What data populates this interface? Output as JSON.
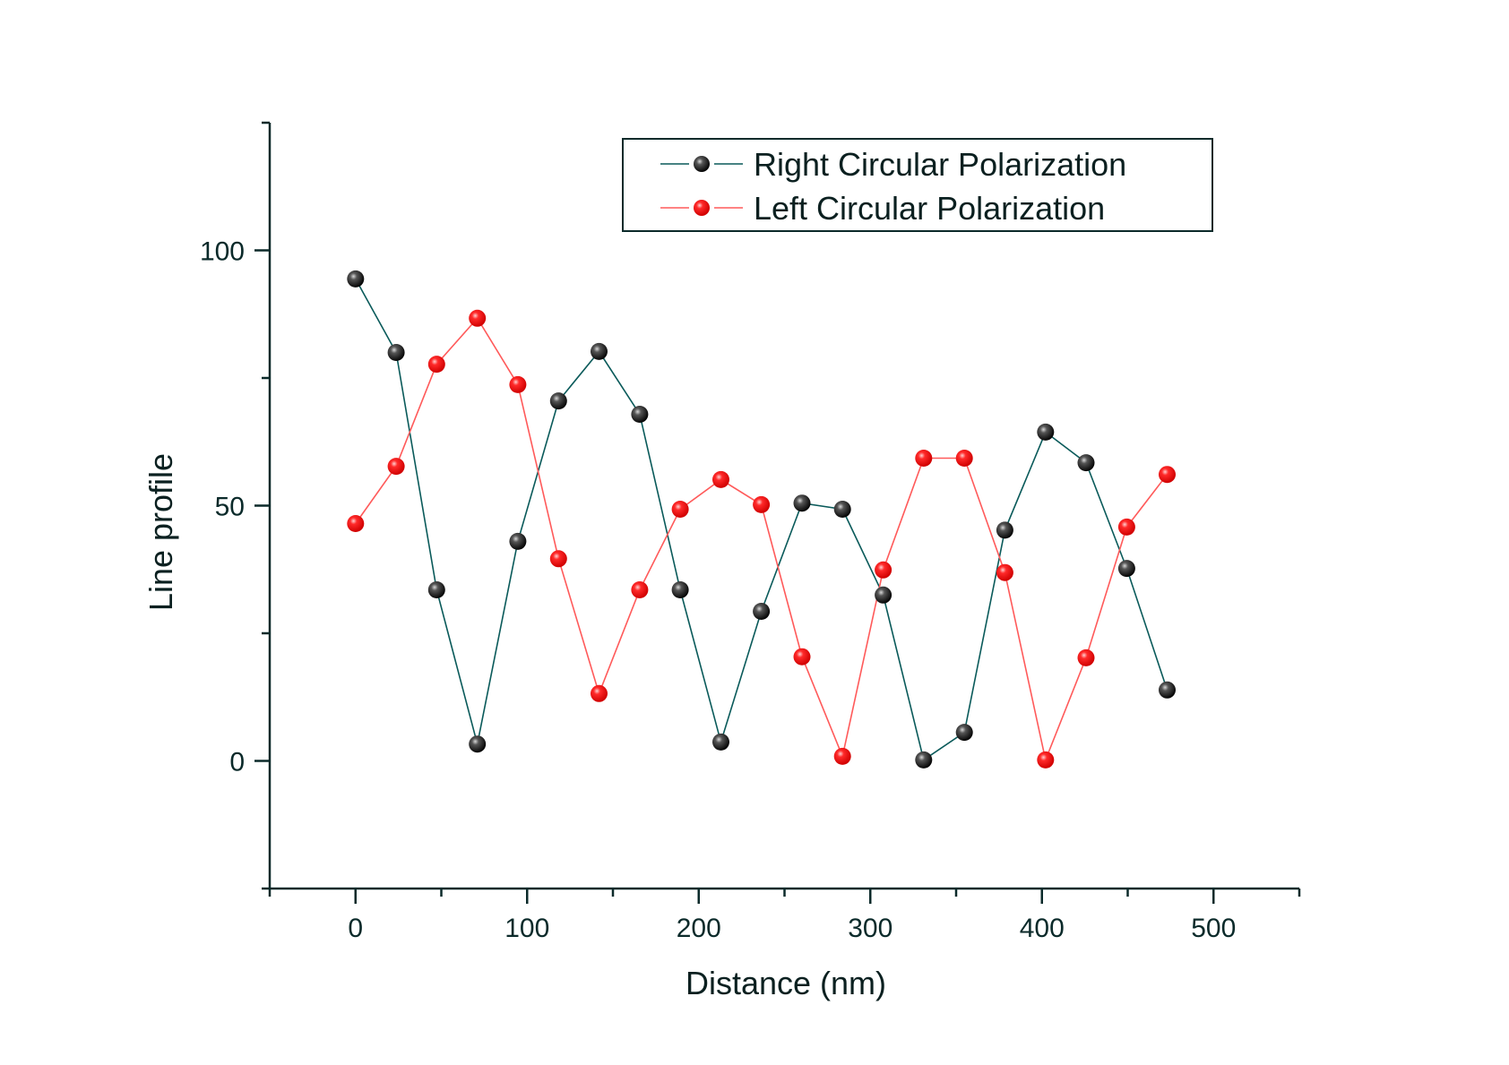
{
  "chart_data": {
    "type": "line",
    "title": "",
    "xlabel": "Distance (nm)",
    "ylabel": "Line profile",
    "xlim": [
      -50,
      550
    ],
    "ylim": [
      -25,
      125
    ],
    "xticks": [
      0,
      100,
      200,
      300,
      400,
      500
    ],
    "xtick_labels": [
      "0",
      "100",
      "200",
      "300",
      "400",
      "500"
    ],
    "xminor_ticks": [
      -50,
      50,
      150,
      250,
      350,
      450,
      550
    ],
    "yticks": [
      0,
      50,
      100
    ],
    "ytick_labels": [
      "0",
      "50",
      "100"
    ],
    "yminor_ticks": [
      -25,
      25,
      75,
      125
    ],
    "grid": false,
    "legend_position": "top-right",
    "x": [
      0,
      23.7,
      47.3,
      71.0,
      94.6,
      118.3,
      141.9,
      165.6,
      189.2,
      212.9,
      236.5,
      260.2,
      283.8,
      307.5,
      331.1,
      354.8,
      378.4,
      402.1,
      425.7,
      449.4,
      473.0
    ],
    "series": [
      {
        "name": "Right Circular Polarization",
        "color": "#0a5a5a",
        "marker_color": "#111111",
        "values": [
          94.4,
          80.0,
          33.5,
          3.3,
          43.0,
          70.5,
          80.2,
          67.9,
          33.5,
          3.7,
          29.3,
          50.5,
          49.3,
          32.5,
          0.2,
          5.6,
          45.2,
          64.4,
          58.4,
          37.7,
          13.9
        ]
      },
      {
        "name": "Left Circular Polarization",
        "color": "#ff5a5a",
        "marker_color": "#ee1111",
        "values": [
          46.5,
          57.7,
          77.7,
          86.7,
          73.7,
          39.6,
          13.2,
          33.5,
          49.3,
          55.1,
          50.2,
          20.4,
          0.9,
          37.4,
          59.3,
          59.3,
          36.9,
          0.2,
          20.2,
          45.8,
          56.1
        ]
      }
    ]
  }
}
